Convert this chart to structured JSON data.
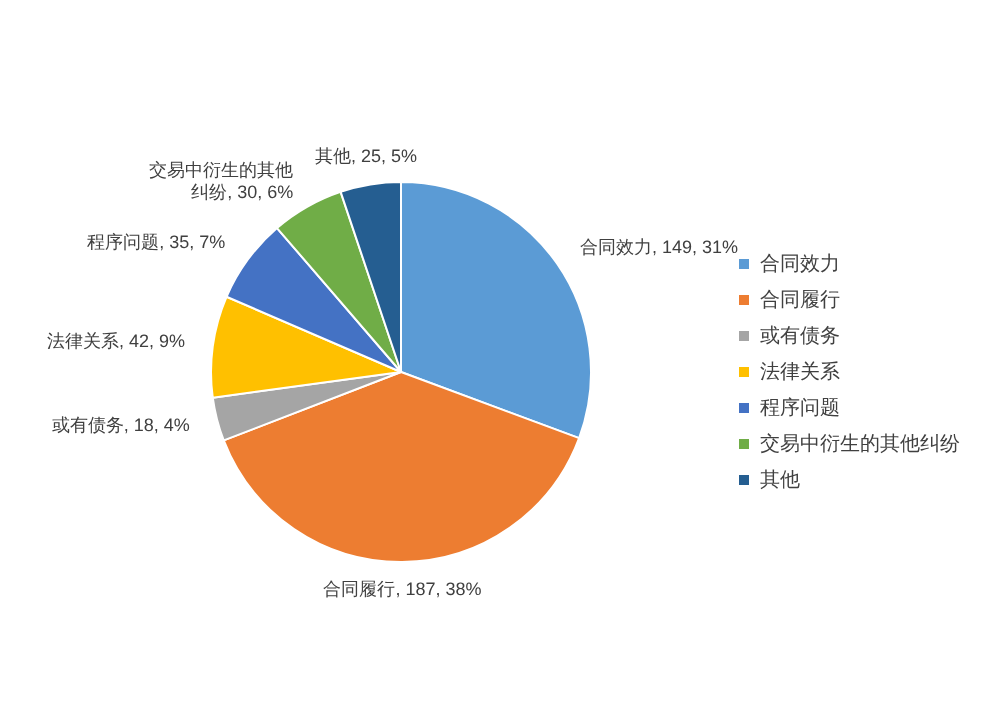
{
  "chart_data": {
    "type": "pie",
    "categories": [
      "合同效力",
      "合同履行",
      "或有债务",
      "法律关系",
      "程序问题",
      "交易中衍生的其他纠纷",
      "其他"
    ],
    "values": [
      149,
      187,
      18,
      42,
      35,
      30,
      25
    ],
    "colors": [
      "#5b9bd5",
      "#ed7d31",
      "#a5a5a5",
      "#ffc000",
      "#4472c4",
      "#70ad47",
      "#255e91"
    ],
    "value_labels": [
      "合同效力, 149, 31%",
      "合同履行, 187, 38%",
      "或有债务, 18, 4%",
      "法律关系, 42, 9%",
      "程序问题, 35, 7%",
      "交易中衍生的其他纠纷, 30, 6%",
      "其他, 25, 5%"
    ],
    "legend": "right"
  }
}
